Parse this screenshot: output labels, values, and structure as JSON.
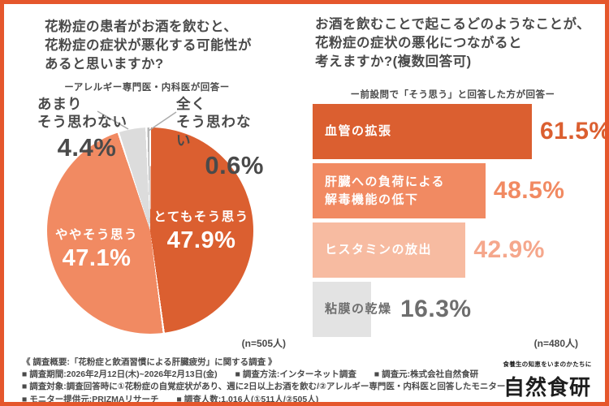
{
  "colors": {
    "frame": "#E5572C",
    "dark_orange": "#DB5F30",
    "salmon": "#F18A62",
    "light_salmon": "#F7BBA1",
    "light_gray": "#DCDCDC",
    "sliver_gray": "#B8B8B8",
    "bar_gray": "#E3E3E3",
    "text_dark": "#4A4A4A",
    "text_gray": "#6E6E6E"
  },
  "chart_data": [
    {
      "type": "pie",
      "title": "花粉症の患者がお酒を飲むと、\n花粉症の症状が悪化する可能性が\nあると思いますか?",
      "subtitle": "ーアレルギー専門医・内科医が回答ー",
      "n_label": "(n=505人)",
      "start_angle_deg": 0,
      "direction": "clockwise",
      "legend_position": "none",
      "slices": [
        {
          "label": "とてもそう思う",
          "value": 47.9,
          "color": "#DB5F30",
          "label_placement": "inside",
          "label_color": "#FFFFFF"
        },
        {
          "label": "ややそう思う",
          "value": 47.1,
          "color": "#F18A62",
          "label_placement": "inside",
          "label_color": "#FFFFFF"
        },
        {
          "label": "あまりそう思わない",
          "label_display": "あまり\nそう思わない",
          "value": 4.4,
          "color": "#DCDCDC",
          "label_placement": "outside",
          "label_color": "#4A4A4A"
        },
        {
          "label": "全くそう思わない",
          "label_display": "全く\nそう思わない",
          "value": 0.6,
          "color": "#B8B8B8",
          "label_placement": "outside",
          "label_color": "#4A4A4A"
        }
      ]
    },
    {
      "type": "bar",
      "orientation": "horizontal",
      "title": "お酒を飲むことで起こるどのようなことが、\n花粉症の症状の悪化につながると\n考えますか?(複数回答可)",
      "subtitle": "ー前設問で「そう思う」と回答した方が回答ー",
      "n_label": "(n=480人)",
      "xlim": [
        0,
        65
      ],
      "grid": false,
      "bars": [
        {
          "label": "血管の拡張",
          "label_display": "血管の拡張",
          "value": 61.5,
          "bar_color": "#DB5F30",
          "label_color": "#FFFFFF",
          "value_color": "#DB5F30"
        },
        {
          "label": "肝臓への負荷による解毒機能の低下",
          "label_display": "肝臓への負荷による\n解毒機能の低下",
          "value": 48.5,
          "bar_color": "#F18A62",
          "label_color": "#FFFFFF",
          "value_color": "#F18A62"
        },
        {
          "label": "ヒスタミンの放出",
          "label_display": "ヒスタミンの放出",
          "value": 42.9,
          "bar_color": "#F7BBA1",
          "label_color": "#FFFFFF",
          "value_color": "#F5A78C"
        },
        {
          "label": "粘膜の乾燥",
          "label_display": "粘膜の乾燥",
          "value": 16.3,
          "bar_color": "#E3E3E3",
          "label_color": "#6E6E6E",
          "value_color": "#6E6E6E"
        }
      ]
    }
  ],
  "footer": {
    "overview": "《 調査概要:「花粉症と飲酒習慣による肝臓疲労」に関する調査 》",
    "rows": [
      {
        "items": [
          "■ 調査期間:2026年2月12日(木)~2026年2月13日(金)",
          "■ 調査方法:インターネット調査",
          "■ 調査元:株式会社自然食研"
        ]
      },
      {
        "items": [
          "■ 調査対象:調査回答時に①花粉症の自覚症状があり、週に2日以上お酒を飲む/②アレルギー専門医・内科医と回答したモニター"
        ]
      },
      {
        "items": [
          "■ モニター提供元:PRIZMAリサーチ",
          "■ 調査人数:1,016人(①511人/②505人)"
        ]
      }
    ]
  },
  "logo": {
    "tagline": "食養生の知恵をいまのかたちに",
    "name": "自然食研"
  }
}
